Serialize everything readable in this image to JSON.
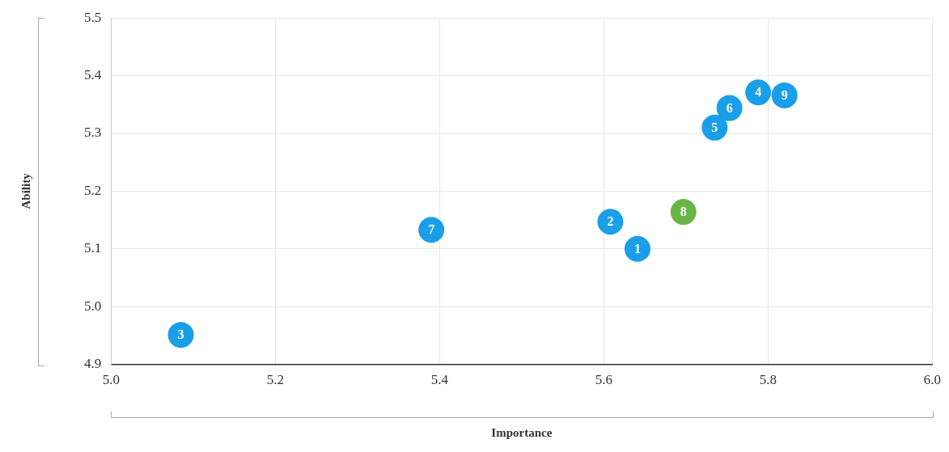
{
  "chart_data": {
    "type": "scatter",
    "xlabel": "Importance",
    "ylabel": "Ability",
    "x": [
      5.641,
      5.608,
      5.085,
      5.788,
      5.735,
      5.753,
      5.39,
      5.697,
      5.82
    ],
    "values": [
      5.1,
      5.147,
      4.951,
      5.371,
      5.31,
      5.344,
      5.133,
      5.164,
      5.366
    ],
    "colors": [
      "#1b9ee8",
      "#1b9ee8",
      "#1b9ee8",
      "#1b9ee8",
      "#1b9ee8",
      "#1b9ee8",
      "#1b9ee8",
      "#6ab547",
      "#1b9ee8"
    ],
    "xlim": [
      5.0,
      6.0
    ],
    "xticks": [
      {
        "value": 5.0,
        "label": "5.0"
      },
      5.2,
      5.4,
      5.6,
      5.8,
      {
        "value": 6.0,
        "label": "6.0"
      }
    ],
    "ylim": [
      4.9,
      5.5
    ],
    "yticks": [
      4.9,
      {
        "value": 5.0,
        "label": "5.0"
      },
      5.1,
      5.2,
      5.3,
      5.4,
      5.5
    ],
    "grid": true,
    "marker": "circle",
    "annotations": [
      {
        "text": "1",
        "x": 5.641,
        "y": 5.1
      },
      {
        "text": "2",
        "x": 5.608,
        "y": 5.147
      },
      {
        "text": "3",
        "x": 5.085,
        "y": 4.951
      },
      {
        "text": "4",
        "x": 5.788,
        "y": 5.371
      },
      {
        "text": "5",
        "x": 5.735,
        "y": 5.31
      },
      {
        "text": "6",
        "x": 5.753,
        "y": 5.344
      },
      {
        "text": "7",
        "x": 5.39,
        "y": 5.133
      },
      {
        "text": "8",
        "x": 5.697,
        "y": 5.164
      },
      {
        "text": "9",
        "x": 5.82,
        "y": 5.366
      }
    ]
  }
}
